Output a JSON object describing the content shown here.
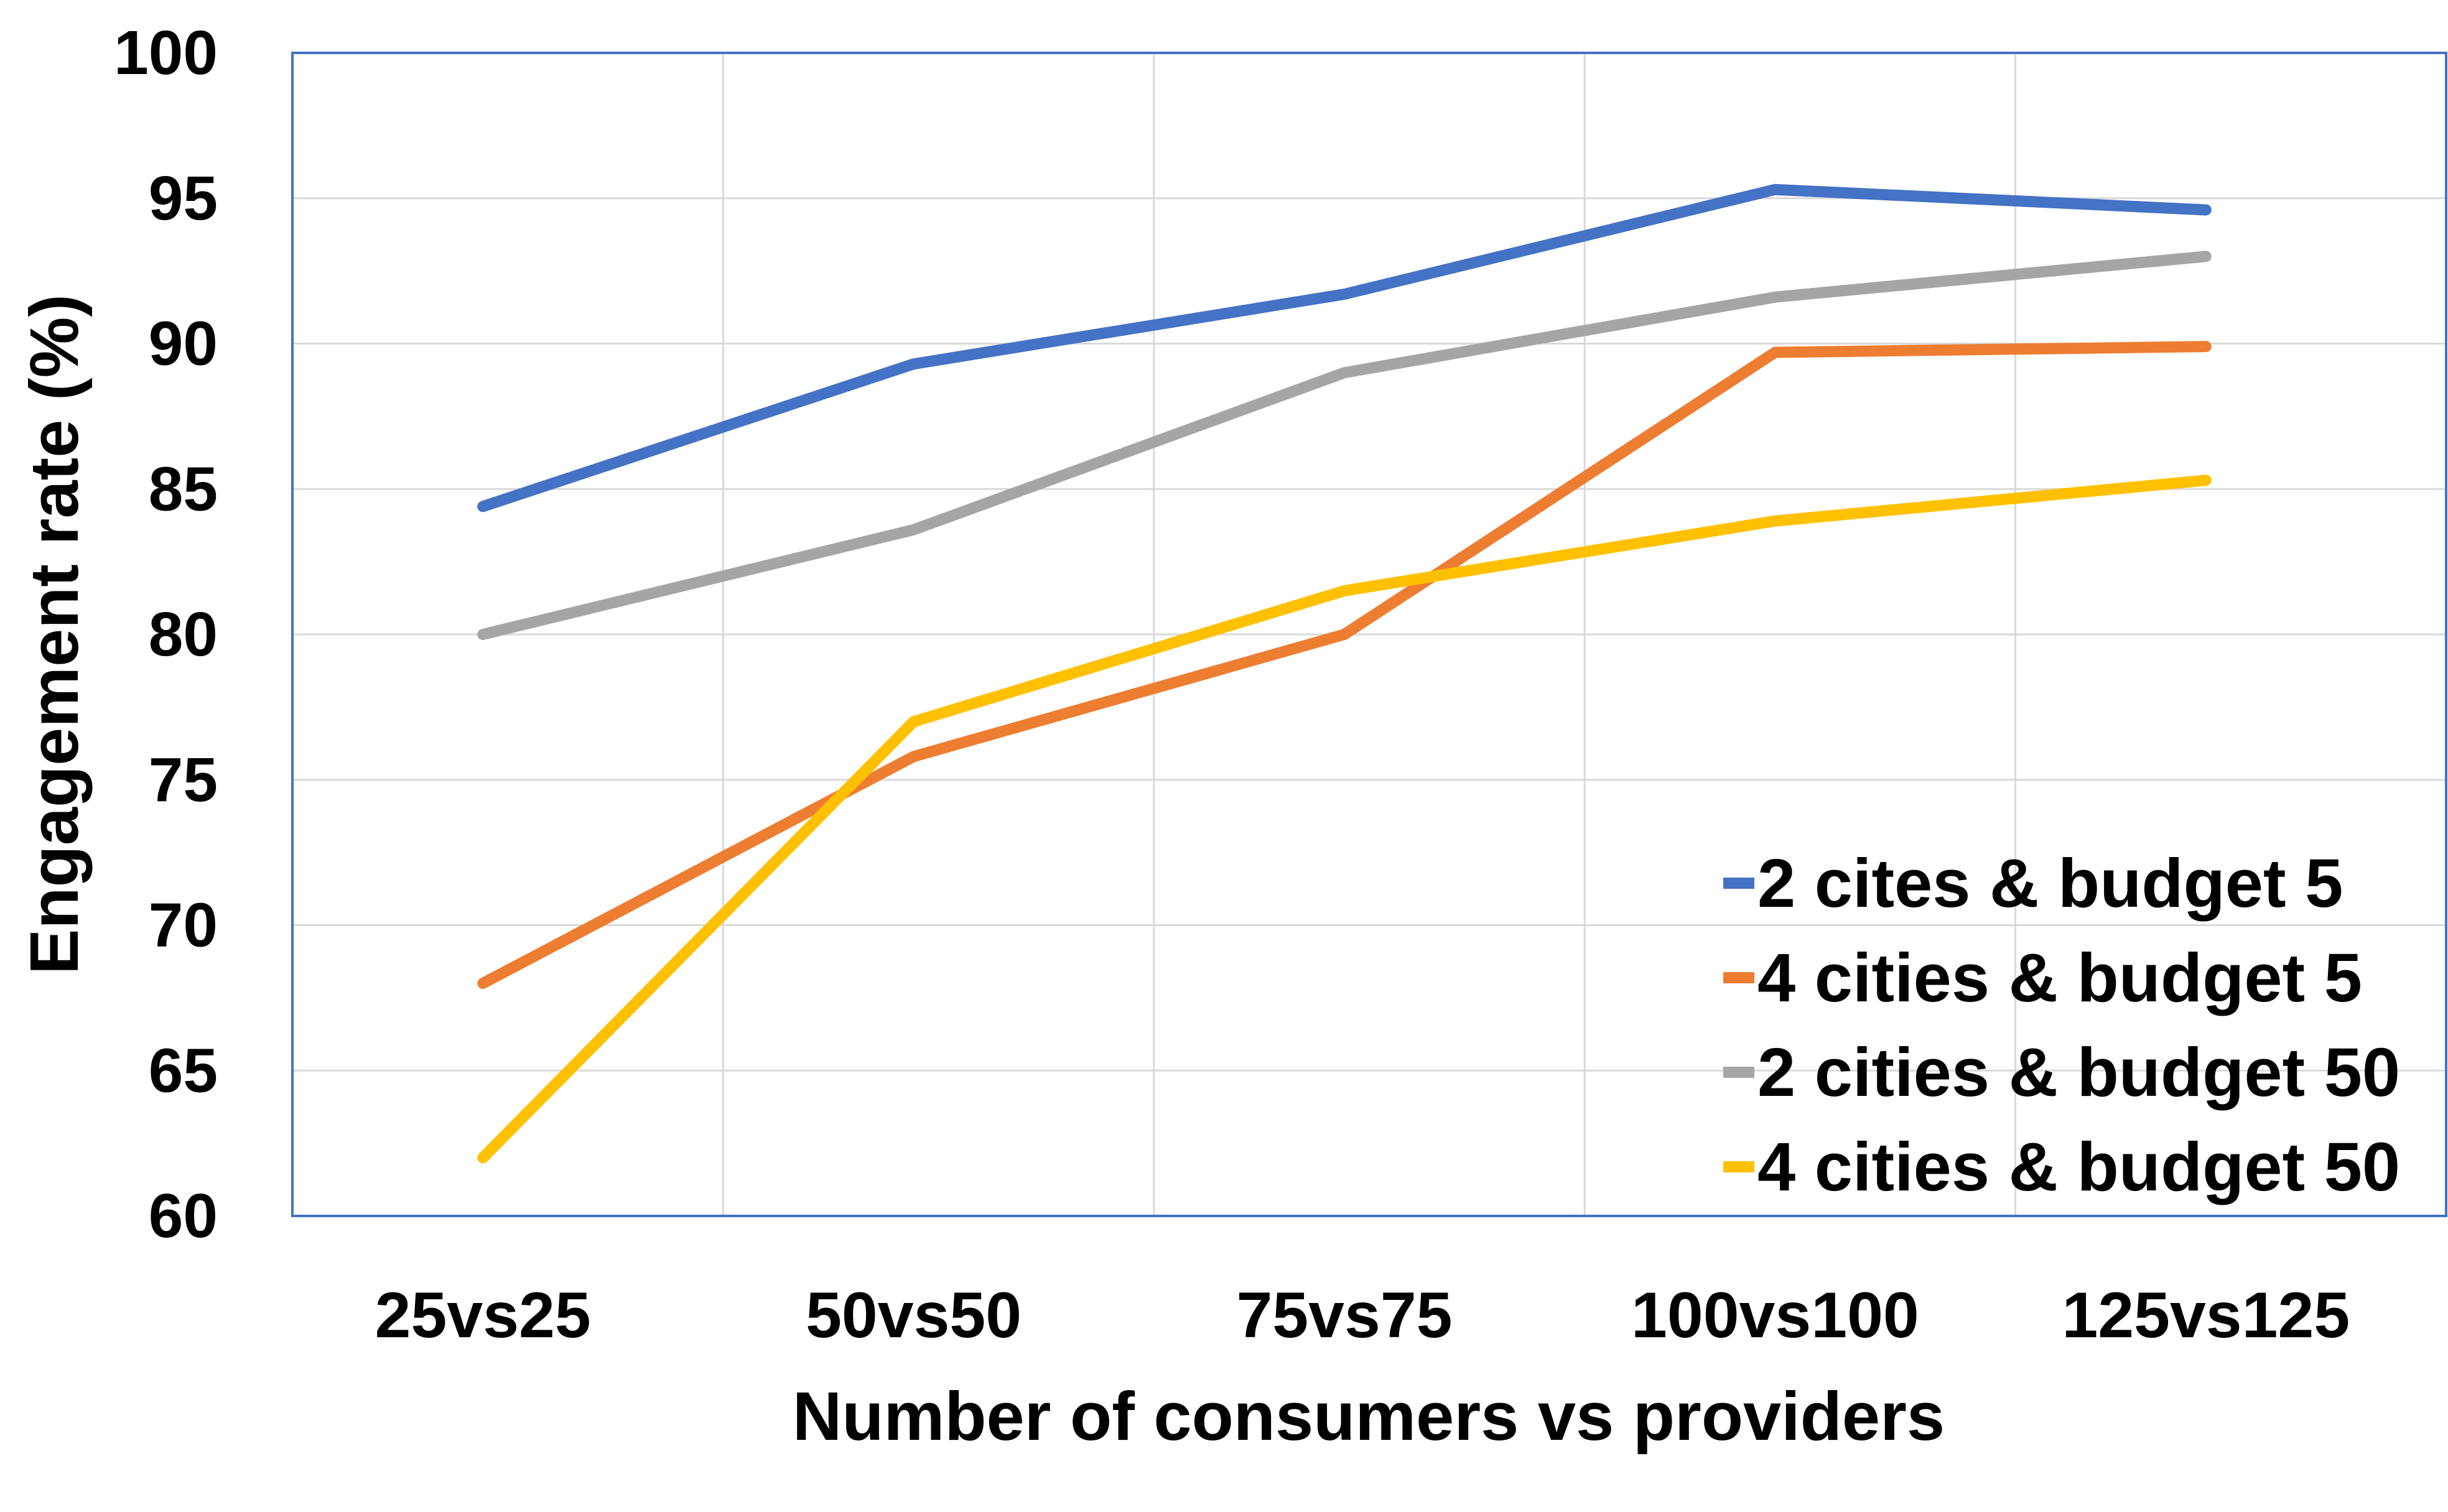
{
  "chart_data": {
    "type": "line",
    "categories": [
      "25vs25",
      "50vs50",
      "75vs75",
      "100vs100",
      "125vs125"
    ],
    "series": [
      {
        "name": "2 cites & budget 5",
        "color": "#4472C4",
        "values": [
          84.4,
          89.3,
          91.7,
          95.3,
          94.6
        ]
      },
      {
        "name": "4 cities & budget 5",
        "color": "#ED7D31",
        "values": [
          68.0,
          75.8,
          80.0,
          89.7,
          89.9
        ]
      },
      {
        "name": "2 cities & budget 50",
        "color": "#A5A5A5",
        "values": [
          80.0,
          83.6,
          89.0,
          91.6,
          93.0
        ]
      },
      {
        "name": "4 cities & budget 50",
        "color": "#FFC000",
        "values": [
          62.0,
          77.0,
          81.5,
          83.9,
          85.3
        ]
      }
    ],
    "yticks": [
      "60",
      "65",
      "70",
      "75",
      "80",
      "85",
      "90",
      "95",
      "100"
    ],
    "xlabel": "Number of consumers vs providers",
    "ylabel": "Engagement rate (%)",
    "ylim": [
      60,
      100
    ],
    "grid": true,
    "legend_position": "bottom-right"
  }
}
